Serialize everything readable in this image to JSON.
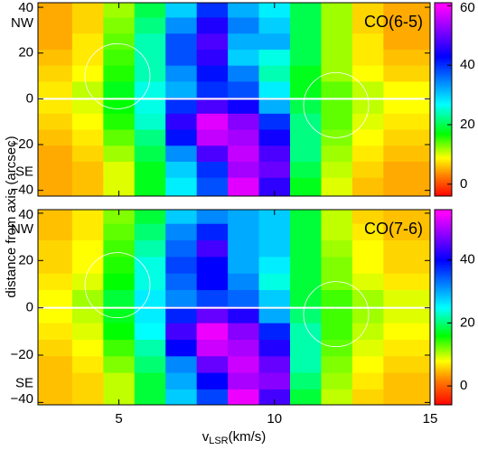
{
  "chart_data": [
    {
      "type": "heatmap",
      "title": "CO(6-5)",
      "y_label": "distance from axis (arcsec)",
      "x": [
        3,
        4,
        5,
        6,
        7,
        8,
        9,
        10,
        11,
        12,
        13,
        14
      ],
      "y": [
        39,
        32,
        25,
        18,
        11,
        4,
        -3,
        -10,
        -17,
        -24,
        -31,
        -38
      ],
      "z": [
        [
          5,
          7,
          12,
          20,
          30,
          40,
          32,
          28,
          20,
          12,
          7,
          5
        ],
        [
          5,
          7,
          13,
          22,
          34,
          45,
          35,
          30,
          20,
          12,
          7,
          5
        ],
        [
          5,
          8,
          14,
          24,
          38,
          48,
          32,
          32,
          20,
          12,
          8,
          5
        ],
        [
          6,
          8,
          15,
          24,
          38,
          46,
          30,
          26,
          20,
          12,
          8,
          6
        ],
        [
          7,
          9,
          16,
          24,
          34,
          42,
          35,
          24,
          18,
          12,
          9,
          7
        ],
        [
          8,
          11,
          18,
          26,
          32,
          40,
          38,
          28,
          18,
          14,
          11,
          9
        ],
        [
          8,
          10,
          17,
          26,
          40,
          48,
          44,
          32,
          20,
          14,
          11,
          9
        ],
        [
          7,
          9,
          16,
          25,
          46,
          58,
          52,
          40,
          22,
          14,
          10,
          8
        ],
        [
          6,
          8,
          14,
          22,
          42,
          56,
          54,
          44,
          22,
          13,
          9,
          7
        ],
        [
          5,
          7,
          12,
          20,
          34,
          48,
          56,
          48,
          22,
          12,
          8,
          6
        ],
        [
          5,
          6,
          10,
          18,
          30,
          40,
          54,
          50,
          20,
          11,
          7,
          5
        ],
        [
          5,
          6,
          10,
          18,
          28,
          38,
          58,
          46,
          18,
          10,
          6,
          5
        ]
      ],
      "xlim": [
        2.4,
        15
      ],
      "ylim": [
        -42.5,
        42
      ],
      "xticks": [
        5,
        10,
        15
      ],
      "x_tick_labels": false,
      "yticks": [
        40,
        20,
        0,
        {
          "value": -20,
          "label": "−20"
        },
        {
          "value": -40,
          "label": "−40"
        }
      ],
      "y_annotations": [
        {
          "value": 33,
          "label": "NW"
        },
        {
          "value": -32,
          "label": "SE"
        }
      ],
      "clim": [
        -4,
        61
      ],
      "cticks": [
        0,
        20,
        40,
        60
      ],
      "colormap": [
        {
          "value": -4,
          "color": "#ff0000"
        },
        {
          "value": 3,
          "color": "#ff8000"
        },
        {
          "value": 9,
          "color": "#ffff00"
        },
        {
          "value": 17,
          "color": "#00ff00"
        },
        {
          "value": 27,
          "color": "#00ffff"
        },
        {
          "value": 43,
          "color": "#0000ff"
        },
        {
          "value": 60,
          "color": "#ff00ff"
        }
      ],
      "zero_line_color": "#ffffff"
    },
    {
      "type": "heatmap",
      "title": "CO(7-6)",
      "x_label": {
        "main": "v",
        "sub": "LSR",
        "rest": "(km/s)"
      },
      "x": [
        3,
        4,
        5,
        6,
        7,
        8,
        9,
        10,
        11,
        12,
        13,
        14
      ],
      "y": [
        39,
        32,
        25,
        18,
        11,
        4,
        -3,
        -10,
        -17,
        -24,
        -31,
        -38
      ],
      "z": [
        [
          5,
          7,
          12,
          18,
          28,
          32,
          30,
          28,
          18,
          10,
          6,
          5
        ],
        [
          5,
          7,
          13,
          20,
          32,
          38,
          30,
          28,
          18,
          10,
          7,
          5
        ],
        [
          6,
          8,
          14,
          22,
          34,
          44,
          30,
          28,
          18,
          11,
          8,
          6
        ],
        [
          6,
          8,
          15,
          24,
          36,
          40,
          30,
          26,
          18,
          12,
          8,
          6
        ],
        [
          7,
          9,
          16,
          24,
          34,
          40,
          32,
          24,
          18,
          12,
          9,
          7
        ],
        [
          8,
          11,
          18,
          26,
          32,
          36,
          34,
          28,
          18,
          14,
          11,
          9
        ],
        [
          8,
          10,
          17,
          26,
          38,
          46,
          42,
          30,
          20,
          14,
          11,
          9
        ],
        [
          7,
          9,
          16,
          25,
          44,
          54,
          48,
          38,
          22,
          14,
          10,
          8
        ],
        [
          6,
          8,
          14,
          22,
          40,
          52,
          50,
          42,
          22,
          13,
          9,
          7
        ],
        [
          5,
          7,
          12,
          20,
          32,
          46,
          52,
          46,
          22,
          12,
          8,
          6
        ],
        [
          5,
          6,
          10,
          18,
          30,
          40,
          50,
          48,
          20,
          11,
          7,
          5
        ],
        [
          5,
          6,
          10,
          18,
          28,
          36,
          54,
          44,
          18,
          10,
          6,
          5
        ]
      ],
      "xlim": [
        2.4,
        15
      ],
      "ylim": [
        -41,
        41.5
      ],
      "xticks": [
        5,
        10,
        15
      ],
      "x_tick_labels": true,
      "yticks": [
        40,
        20,
        0,
        {
          "value": -20,
          "label": "−20"
        },
        {
          "value": -40,
          "label": "−40"
        }
      ],
      "y_annotations": [
        {
          "value": 33,
          "label": "NW"
        },
        {
          "value": -32,
          "label": "SE"
        }
      ],
      "clim": [
        -6,
        56
      ],
      "cticks": [
        0,
        20,
        40
      ],
      "colormap": [
        {
          "value": -6,
          "color": "#ff0000"
        },
        {
          "value": 2,
          "color": "#ff8000"
        },
        {
          "value": 8,
          "color": "#ffff00"
        },
        {
          "value": 16,
          "color": "#00ff00"
        },
        {
          "value": 25,
          "color": "#00ffff"
        },
        {
          "value": 40,
          "color": "#0000ff"
        },
        {
          "value": 55,
          "color": "#ff00ff"
        }
      ],
      "zero_line_color": "#ffffff"
    }
  ]
}
